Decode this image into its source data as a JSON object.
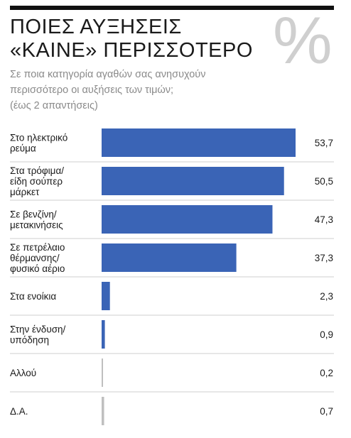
{
  "header": {
    "title_line1": "ΠΟΙΕΣ ΑΥΞΗΣΕΙΣ",
    "title_line2": "«ΚΑΙΝΕ» ΠΕΡΙΣΣΟΤΕΡΟ",
    "icon": "percent-icon",
    "icon_glyph": "%",
    "question_line1": "Σε ποια κατηγορία αγαθών σας ανησυχούν",
    "question_line2": "περισσότερο οι αυξήσεις των τιμών;",
    "question_line3": "(έως 2 απαντήσεις)"
  },
  "colors": {
    "bar": "#3a64b6",
    "bar_muted": "#bfbfbf",
    "divider": "#cfcfcf",
    "rule": "#111111"
  },
  "chart_data": {
    "type": "bar",
    "orientation": "horizontal",
    "categories": [
      [
        "Στο ηλεκτρικό",
        "ρεύμα"
      ],
      [
        "Στα τρόφιμα/",
        "είδη σούπερ",
        "μάρκετ"
      ],
      [
        "Σε βενζίνη/",
        "μετακινήσεις"
      ],
      [
        "Σε πετρέλαιο",
        "θέρμανσης/",
        "φυσικό αέριο"
      ],
      [
        "Στα ενοίκια"
      ],
      [
        "Στην ένδυση/",
        "υπόδηση"
      ],
      [
        "Αλλού"
      ],
      [
        "Δ.Α."
      ]
    ],
    "values": [
      53.7,
      50.5,
      47.3,
      37.3,
      2.3,
      0.9,
      0.2,
      0.7
    ],
    "value_labels": [
      "53,7",
      "50,5",
      "47,3",
      "37,3",
      "2,3",
      "0,9",
      "0,2",
      "0,7"
    ],
    "muted": [
      false,
      false,
      false,
      false,
      false,
      false,
      true,
      true
    ],
    "xlim": [
      0,
      53.7
    ],
    "unit": "%"
  }
}
